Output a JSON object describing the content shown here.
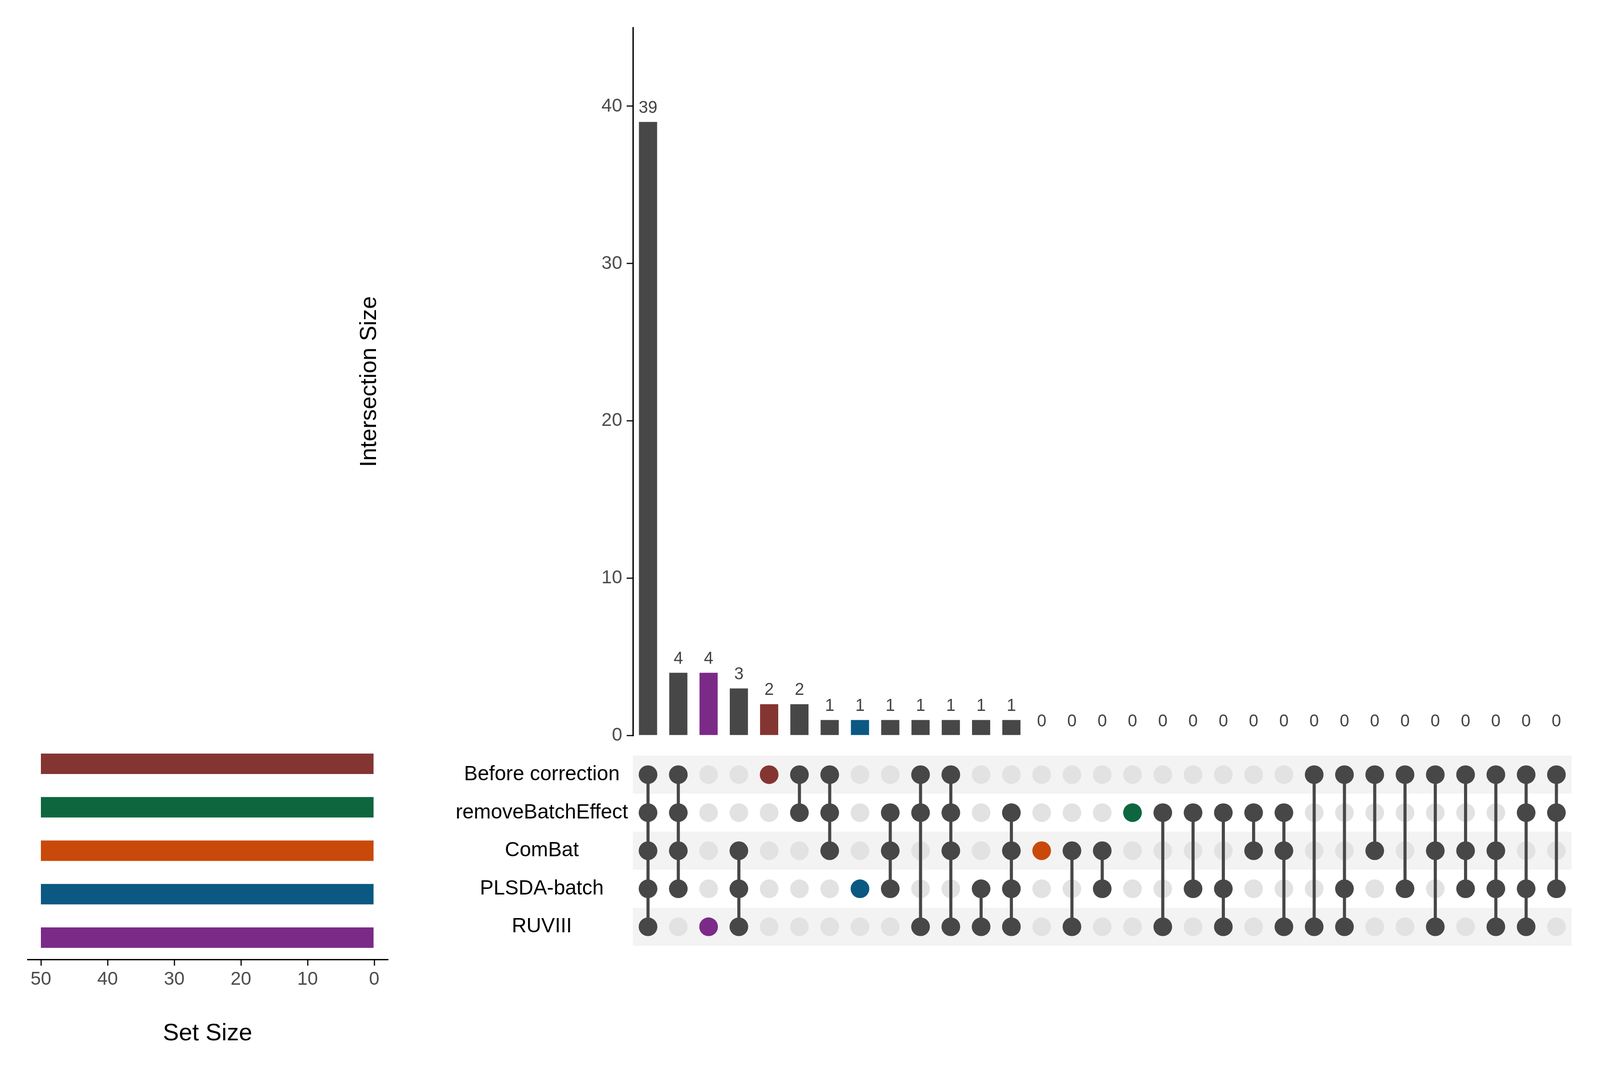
{
  "chart_data": {
    "type": "upset",
    "ylabel": "Intersection Size",
    "ylim": [
      0,
      45
    ],
    "yticks": [
      0,
      10,
      20,
      30,
      40
    ],
    "xlabel": "Set Size",
    "xlim": [
      -2,
      52
    ],
    "xticks": [
      0,
      10,
      20,
      30,
      40,
      50
    ],
    "data_labels": true,
    "sets": [
      {
        "name": "Before correction",
        "color": "#843532",
        "size": 50
      },
      {
        "name": "removeBatchEffect",
        "color": "#0e663f",
        "size": 50
      },
      {
        "name": "ComBat",
        "color": "#c9490b",
        "size": 50
      },
      {
        "name": "PLSDA-batch",
        "color": "#0b5883",
        "size": 50
      },
      {
        "name": "RUVIII",
        "color": "#7b2a88",
        "size": 50
      }
    ],
    "intersections": [
      {
        "members": [
          "Before correction",
          "removeBatchEffect",
          "ComBat",
          "PLSDA-batch",
          "RUVIII"
        ],
        "value": 39
      },
      {
        "members": [
          "Before correction",
          "removeBatchEffect",
          "ComBat",
          "PLSDA-batch"
        ],
        "value": 4
      },
      {
        "members": [
          "RUVIII"
        ],
        "value": 4
      },
      {
        "members": [
          "ComBat",
          "PLSDA-batch",
          "RUVIII"
        ],
        "value": 3
      },
      {
        "members": [
          "Before correction"
        ],
        "value": 2
      },
      {
        "members": [
          "Before correction",
          "removeBatchEffect"
        ],
        "value": 2
      },
      {
        "members": [
          "Before correction",
          "removeBatchEffect",
          "ComBat"
        ],
        "value": 1
      },
      {
        "members": [
          "PLSDA-batch"
        ],
        "value": 1
      },
      {
        "members": [
          "removeBatchEffect",
          "ComBat",
          "PLSDA-batch"
        ],
        "value": 1
      },
      {
        "members": [
          "Before correction",
          "removeBatchEffect",
          "RUVIII"
        ],
        "value": 1
      },
      {
        "members": [
          "Before correction",
          "removeBatchEffect",
          "ComBat",
          "RUVIII"
        ],
        "value": 1
      },
      {
        "members": [
          "PLSDA-batch",
          "RUVIII"
        ],
        "value": 1
      },
      {
        "members": [
          "removeBatchEffect",
          "ComBat",
          "PLSDA-batch",
          "RUVIII"
        ],
        "value": 1
      },
      {
        "members": [
          "ComBat"
        ],
        "value": 0
      },
      {
        "members": [
          "ComBat",
          "RUVIII"
        ],
        "value": 0
      },
      {
        "members": [
          "ComBat",
          "PLSDA-batch"
        ],
        "value": 0
      },
      {
        "members": [
          "removeBatchEffect"
        ],
        "value": 0
      },
      {
        "members": [
          "removeBatchEffect",
          "RUVIII"
        ],
        "value": 0
      },
      {
        "members": [
          "removeBatchEffect",
          "PLSDA-batch"
        ],
        "value": 0
      },
      {
        "members": [
          "removeBatchEffect",
          "PLSDA-batch",
          "RUVIII"
        ],
        "value": 0
      },
      {
        "members": [
          "removeBatchEffect",
          "ComBat"
        ],
        "value": 0
      },
      {
        "members": [
          "removeBatchEffect",
          "ComBat",
          "RUVIII"
        ],
        "value": 0
      },
      {
        "members": [
          "Before correction",
          "RUVIII"
        ],
        "value": 0
      },
      {
        "members": [
          "Before correction",
          "PLSDA-batch",
          "RUVIII"
        ],
        "value": 0
      },
      {
        "members": [
          "Before correction",
          "ComBat"
        ],
        "value": 0
      },
      {
        "members": [
          "Before correction",
          "PLSDA-batch"
        ],
        "value": 0
      },
      {
        "members": [
          "Before correction",
          "ComBat",
          "RUVIII"
        ],
        "value": 0
      },
      {
        "members": [
          "Before correction",
          "ComBat",
          "PLSDA-batch"
        ],
        "value": 0
      },
      {
        "members": [
          "Before correction",
          "ComBat",
          "PLSDA-batch",
          "RUVIII"
        ],
        "value": 0
      },
      {
        "members": [
          "Before correction",
          "removeBatchEffect",
          "PLSDA-batch",
          "RUVIII"
        ],
        "value": 0
      },
      {
        "members": [
          "Before correction",
          "removeBatchEffect",
          "PLSDA-batch"
        ],
        "value": 0
      }
    ]
  }
}
